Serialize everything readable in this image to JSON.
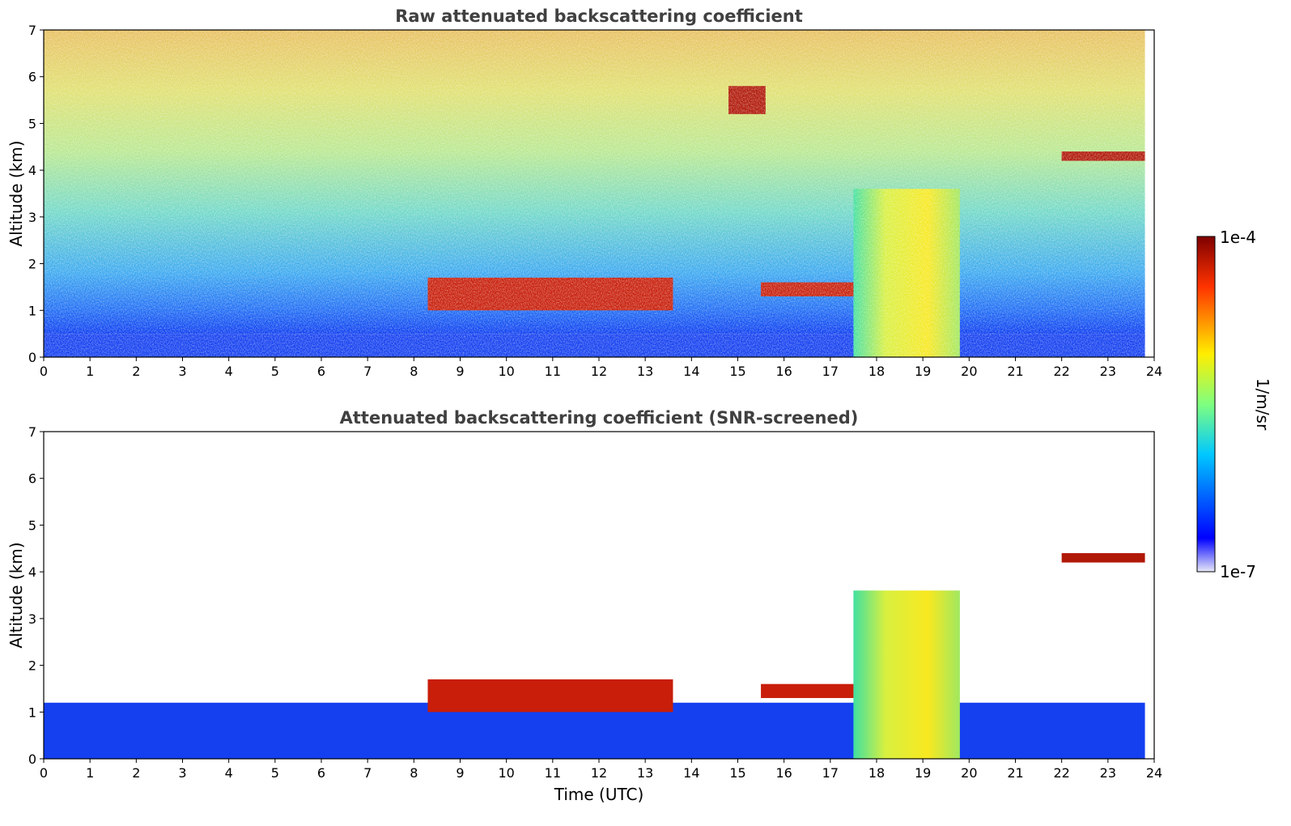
{
  "chart_data": [
    {
      "type": "heatmap",
      "title": "Raw attenuated backscattering coefficient",
      "xlabel": "",
      "ylabel": "Altitude (km)",
      "xlim": [
        0,
        24
      ],
      "ylim": [
        0,
        7
      ],
      "x_ticks": [
        "0",
        "1",
        "2",
        "3",
        "4",
        "5",
        "6",
        "7",
        "8",
        "9",
        "10",
        "11",
        "12",
        "13",
        "14",
        "15",
        "16",
        "17",
        "18",
        "19",
        "20",
        "21",
        "22",
        "23",
        "24"
      ],
      "y_ticks": [
        "0",
        "1",
        "2",
        "3",
        "4",
        "5",
        "6",
        "7"
      ],
      "data_end_hour": 23.8,
      "features": [
        {
          "kind": "boundary-layer",
          "t0": 0,
          "t1": 23.8,
          "z0": 0,
          "z1": 0.5
        },
        {
          "kind": "noise-gradient",
          "t0": 0,
          "t1": 23.8,
          "z0": 0.5,
          "z1": 7
        },
        {
          "kind": "cloud-layer",
          "t0": 8.3,
          "t1": 13.6,
          "z0": 1.0,
          "z1": 1.7
        },
        {
          "kind": "cloud-layer",
          "t0": 15.5,
          "t1": 17.5,
          "z0": 1.3,
          "z1": 1.6
        },
        {
          "kind": "precipitation",
          "t0": 17.5,
          "t1": 19.8,
          "z0": 0,
          "z1": 3.6
        },
        {
          "kind": "cirrus",
          "t0": 14.8,
          "t1": 15.6,
          "z0": 5.2,
          "z1": 5.8
        },
        {
          "kind": "cirrus",
          "t0": 22.0,
          "t1": 23.8,
          "z0": 4.2,
          "z1": 4.4
        }
      ]
    },
    {
      "type": "heatmap",
      "title": "Attenuated backscattering coefficient (SNR-screened)",
      "xlabel": "Time (UTC)",
      "ylabel": "Altitude (km)",
      "xlim": [
        0,
        24
      ],
      "ylim": [
        0,
        7
      ],
      "x_ticks": [
        "0",
        "1",
        "2",
        "3",
        "4",
        "5",
        "6",
        "7",
        "8",
        "9",
        "10",
        "11",
        "12",
        "13",
        "14",
        "15",
        "16",
        "17",
        "18",
        "19",
        "20",
        "21",
        "22",
        "23",
        "24"
      ],
      "y_ticks": [
        "0",
        "1",
        "2",
        "3",
        "4",
        "5",
        "6",
        "7"
      ],
      "data_end_hour": 23.8,
      "features": [
        {
          "kind": "boundary-layer",
          "t0": 0,
          "t1": 23.8,
          "z0": 0,
          "z1": 1.2
        },
        {
          "kind": "cloud-layer",
          "t0": 8.3,
          "t1": 13.6,
          "z0": 1.0,
          "z1": 1.7
        },
        {
          "kind": "cloud-layer",
          "t0": 15.5,
          "t1": 17.5,
          "z0": 1.3,
          "z1": 1.6
        },
        {
          "kind": "precipitation",
          "t0": 17.5,
          "t1": 19.8,
          "z0": 0,
          "z1": 3.6
        },
        {
          "kind": "cirrus",
          "t0": 22.0,
          "t1": 23.8,
          "z0": 4.2,
          "z1": 4.4
        }
      ]
    }
  ],
  "colorbar": {
    "max_label": "1e-4",
    "min_label": "1e-7",
    "unit_label": "1/m/sr",
    "colormap": "jet",
    "stops": [
      "#e8e8f8",
      "#0000ff",
      "#00c8ff",
      "#7fff7f",
      "#ffee00",
      "#ff5500",
      "#7f0000"
    ]
  }
}
